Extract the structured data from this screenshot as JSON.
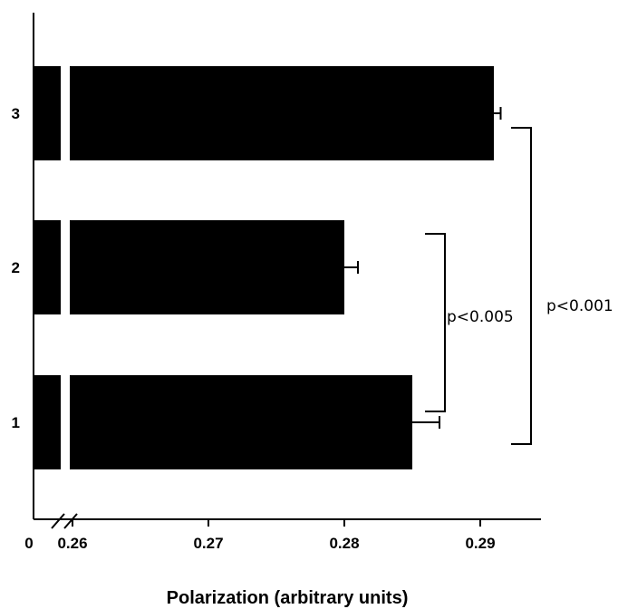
{
  "chart_data": {
    "type": "bar",
    "orientation": "horizontal",
    "categories": [
      "1",
      "2",
      "3"
    ],
    "values": [
      0.285,
      0.28,
      0.291
    ],
    "errors": [
      0.002,
      0.001,
      0.0005
    ],
    "xlabel": "Polarization (arbitrary units)",
    "xticks": [
      "0",
      "0.26",
      "0.27",
      "0.28",
      "0.29"
    ],
    "xlim": [
      0.258,
      0.2945
    ],
    "axis_break": "between 0 and 0.26",
    "comparisons": [
      {
        "categories": [
          "1",
          "2"
        ],
        "label": "p<0.005"
      },
      {
        "categories": [
          "1",
          "3"
        ],
        "label": "p<0.001"
      }
    ],
    "bar_color": "#000000",
    "grid": false,
    "legend": "none"
  }
}
